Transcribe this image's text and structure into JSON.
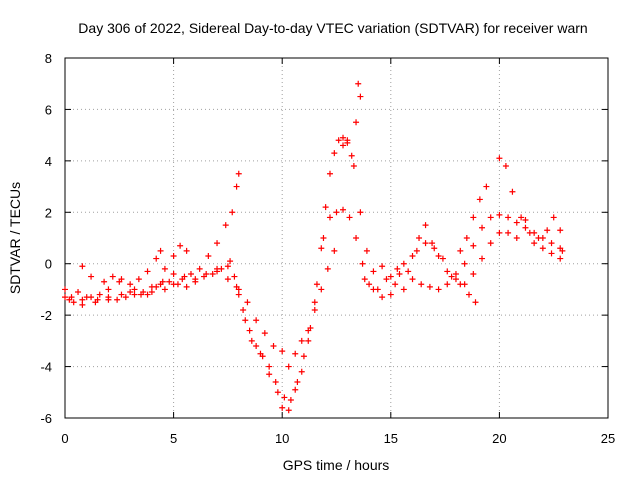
{
  "chart_data": {
    "type": "scatter",
    "title": "Day 306 of 2022, Sidereal Day-to-day VTEC variation (SDTVAR) for receiver warn",
    "xlabel": "GPS time / hours",
    "ylabel": "SDTVAR / TECUs",
    "xlim": [
      0,
      25
    ],
    "ylim": [
      -6,
      8
    ],
    "xticks": [
      0,
      5,
      10,
      15,
      20,
      25
    ],
    "yticks": [
      -6,
      -4,
      -2,
      0,
      2,
      4,
      6,
      8
    ],
    "grid": true,
    "marker": "+",
    "series": [
      {
        "color": "#ff0000",
        "points": [
          [
            0.0,
            -1.0
          ],
          [
            0.3,
            -1.3
          ],
          [
            0.6,
            -1.1
          ],
          [
            1.0,
            -1.3
          ],
          [
            1.5,
            -1.4
          ],
          [
            2.0,
            -1.0
          ],
          [
            2.5,
            -0.7
          ],
          [
            3.0,
            -1.1
          ],
          [
            3.5,
            -1.2
          ],
          [
            4.0,
            -1.1
          ],
          [
            4.5,
            -0.7
          ],
          [
            5.0,
            -0.4
          ],
          [
            5.5,
            -0.5
          ],
          [
            6.0,
            -0.7
          ],
          [
            6.5,
            -0.4
          ],
          [
            7.0,
            -0.3
          ],
          [
            7.5,
            -0.1
          ],
          [
            7.8,
            -0.5
          ],
          [
            8.0,
            -1.2
          ],
          [
            8.3,
            -2.2
          ],
          [
            8.6,
            -3.0
          ],
          [
            9.0,
            -3.5
          ],
          [
            9.4,
            -4.3
          ],
          [
            9.8,
            -5.0
          ],
          [
            10.0,
            -5.6
          ],
          [
            10.3,
            -5.7
          ],
          [
            10.6,
            -4.9
          ],
          [
            10.9,
            -4.2
          ],
          [
            11.2,
            -3.0
          ],
          [
            11.5,
            -1.5
          ],
          [
            11.8,
            0.6
          ],
          [
            12.0,
            2.2
          ],
          [
            12.2,
            3.5
          ],
          [
            12.4,
            4.3
          ],
          [
            12.6,
            4.8
          ],
          [
            12.8,
            4.9
          ],
          [
            13.0,
            4.7
          ],
          [
            13.3,
            3.8
          ],
          [
            13.6,
            2.0
          ],
          [
            13.9,
            0.5
          ],
          [
            14.2,
            -0.3
          ],
          [
            14.6,
            -0.1
          ],
          [
            15.0,
            -0.5
          ],
          [
            15.3,
            -0.2
          ],
          [
            15.6,
            0.0
          ],
          [
            16.0,
            0.3
          ],
          [
            16.3,
            1.0
          ],
          [
            16.6,
            1.5
          ],
          [
            16.9,
            0.8
          ],
          [
            17.2,
            0.3
          ],
          [
            17.6,
            -0.3
          ],
          [
            18.0,
            -0.4
          ],
          [
            18.4,
            0.0
          ],
          [
            18.8,
            0.7
          ],
          [
            19.2,
            1.4
          ],
          [
            19.6,
            1.8
          ],
          [
            20.0,
            1.9
          ],
          [
            20.4,
            1.8
          ],
          [
            20.8,
            1.6
          ],
          [
            21.2,
            1.7
          ],
          [
            21.6,
            0.8
          ],
          [
            22.0,
            0.6
          ],
          [
            22.4,
            0.4
          ],
          [
            22.8,
            0.2
          ],
          [
            0.0,
            -1.3
          ],
          [
            0.4,
            -1.5
          ],
          [
            0.8,
            -1.4
          ],
          [
            1.2,
            -1.3
          ],
          [
            1.6,
            -1.2
          ],
          [
            2.0,
            -1.3
          ],
          [
            2.4,
            -1.4
          ],
          [
            2.8,
            -1.3
          ],
          [
            3.2,
            -1.2
          ],
          [
            3.6,
            -1.1
          ],
          [
            4.0,
            -0.9
          ],
          [
            4.4,
            -0.8
          ],
          [
            4.8,
            -0.7
          ],
          [
            5.2,
            -0.8
          ],
          [
            5.6,
            -0.9
          ],
          [
            6.0,
            -0.6
          ],
          [
            6.4,
            -0.5
          ],
          [
            6.8,
            -0.4
          ],
          [
            7.2,
            -0.2
          ],
          [
            7.6,
            0.1
          ],
          [
            7.9,
            -0.9
          ],
          [
            8.2,
            -1.8
          ],
          [
            8.5,
            -2.6
          ],
          [
            8.8,
            -3.2
          ],
          [
            9.1,
            -3.6
          ],
          [
            9.4,
            -4.0
          ],
          [
            9.7,
            -4.6
          ],
          [
            10.1,
            -5.2
          ],
          [
            10.4,
            -5.3
          ],
          [
            10.7,
            -4.6
          ],
          [
            11.0,
            -3.6
          ],
          [
            11.3,
            -2.5
          ],
          [
            11.6,
            -0.8
          ],
          [
            11.9,
            1.0
          ],
          [
            12.2,
            1.8
          ],
          [
            12.5,
            2.0
          ],
          [
            12.8,
            2.1
          ],
          [
            13.1,
            1.8
          ],
          [
            13.4,
            1.0
          ],
          [
            13.7,
            0.0
          ],
          [
            14.0,
            -0.8
          ],
          [
            14.4,
            -1.0
          ],
          [
            14.8,
            -0.6
          ],
          [
            15.2,
            -0.8
          ],
          [
            15.6,
            -1.0
          ],
          [
            16.0,
            -0.6
          ],
          [
            16.4,
            -0.8
          ],
          [
            16.8,
            -0.9
          ],
          [
            17.2,
            -1.0
          ],
          [
            17.6,
            -0.8
          ],
          [
            18.0,
            -0.6
          ],
          [
            18.4,
            -0.8
          ],
          [
            18.8,
            -0.4
          ],
          [
            19.2,
            0.2
          ],
          [
            19.6,
            0.8
          ],
          [
            20.0,
            1.2
          ],
          [
            20.4,
            1.2
          ],
          [
            20.8,
            1.0
          ],
          [
            21.2,
            1.4
          ],
          [
            21.6,
            1.2
          ],
          [
            22.0,
            1.0
          ],
          [
            22.4,
            0.8
          ],
          [
            22.8,
            0.6
          ],
          [
            0.2,
            -1.4
          ],
          [
            0.8,
            -1.6
          ],
          [
            1.4,
            -1.5
          ],
          [
            2.0,
            -1.4
          ],
          [
            2.6,
            -1.2
          ],
          [
            3.2,
            -1.0
          ],
          [
            3.8,
            -1.2
          ],
          [
            4.2,
            -0.9
          ],
          [
            4.6,
            -1.0
          ],
          [
            5.0,
            -0.8
          ],
          [
            5.4,
            -0.6
          ],
          [
            5.8,
            -0.4
          ],
          [
            6.2,
            -0.2
          ],
          [
            6.6,
            0.3
          ],
          [
            7.0,
            0.8
          ],
          [
            7.4,
            1.5
          ],
          [
            7.7,
            2.0
          ],
          [
            7.9,
            3.0
          ],
          [
            8.0,
            3.5
          ],
          [
            0.8,
            -0.1
          ],
          [
            1.2,
            -0.5
          ],
          [
            1.8,
            -0.7
          ],
          [
            2.2,
            -0.5
          ],
          [
            2.6,
            -0.6
          ],
          [
            3.0,
            -0.8
          ],
          [
            3.4,
            -0.6
          ],
          [
            3.8,
            -0.3
          ],
          [
            4.2,
            0.2
          ],
          [
            4.4,
            0.5
          ],
          [
            4.6,
            -0.2
          ],
          [
            5.0,
            0.3
          ],
          [
            5.3,
            0.7
          ],
          [
            5.6,
            0.5
          ],
          [
            7.0,
            -0.2
          ],
          [
            7.5,
            -0.6
          ],
          [
            8.0,
            -1.0
          ],
          [
            8.4,
            -1.5
          ],
          [
            8.8,
            -2.2
          ],
          [
            9.2,
            -2.7
          ],
          [
            9.6,
            -3.2
          ],
          [
            10.0,
            -3.4
          ],
          [
            10.3,
            -4.0
          ],
          [
            10.6,
            -3.5
          ],
          [
            10.9,
            -3.0
          ],
          [
            11.2,
            -2.6
          ],
          [
            11.5,
            -1.8
          ],
          [
            11.8,
            -1.0
          ],
          [
            12.1,
            -0.2
          ],
          [
            12.4,
            0.5
          ],
          [
            12.8,
            4.6
          ],
          [
            13.0,
            4.8
          ],
          [
            13.2,
            4.2
          ],
          [
            13.4,
            5.5
          ],
          [
            13.5,
            7.0
          ],
          [
            13.6,
            6.5
          ],
          [
            13.8,
            -0.6
          ],
          [
            14.2,
            -1.0
          ],
          [
            14.6,
            -1.3
          ],
          [
            15.0,
            -1.2
          ],
          [
            15.4,
            -0.4
          ],
          [
            15.8,
            -0.3
          ],
          [
            16.2,
            0.5
          ],
          [
            16.6,
            0.8
          ],
          [
            17.0,
            0.6
          ],
          [
            17.4,
            0.2
          ],
          [
            17.8,
            -0.5
          ],
          [
            18.2,
            -0.8
          ],
          [
            18.6,
            -1.2
          ],
          [
            18.9,
            -1.5
          ],
          [
            18.2,
            0.5
          ],
          [
            18.5,
            1.0
          ],
          [
            18.8,
            1.8
          ],
          [
            19.1,
            2.5
          ],
          [
            19.4,
            3.0
          ],
          [
            20.0,
            4.1
          ],
          [
            20.3,
            3.8
          ],
          [
            20.6,
            2.8
          ],
          [
            21.0,
            1.8
          ],
          [
            21.4,
            1.2
          ],
          [
            21.8,
            1.0
          ],
          [
            22.2,
            1.3
          ],
          [
            22.5,
            1.8
          ],
          [
            22.8,
            1.3
          ],
          [
            22.9,
            0.5
          ]
        ]
      }
    ]
  }
}
